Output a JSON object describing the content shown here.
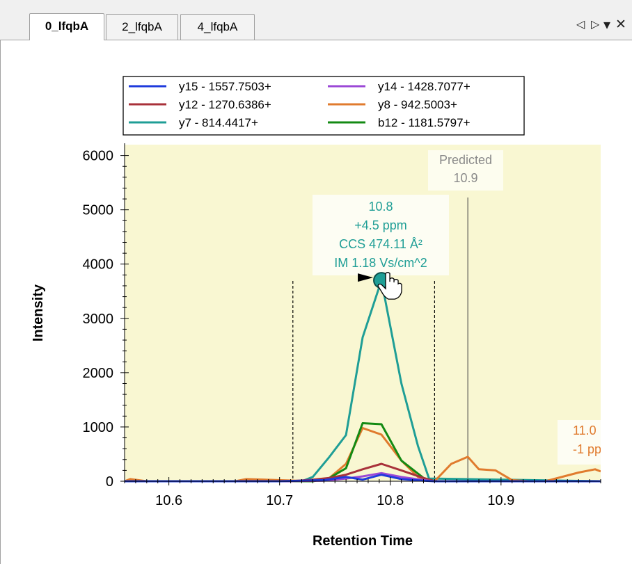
{
  "tabs": [
    {
      "label": "0_lfqbA",
      "active": true
    },
    {
      "label": "2_lfqbA",
      "active": false
    },
    {
      "label": "4_lfqbA",
      "active": false
    }
  ],
  "tab_controls": {
    "prev": "◁",
    "next": "▷",
    "menu": "▾",
    "close": "✕"
  },
  "colors": {
    "plot_background": "#f9f7d2",
    "y15": "#1f3bdc",
    "y14": "#9b48d6",
    "y12": "#a8313a",
    "y8": "#e07b2e",
    "y7": "#1f9e96",
    "b12": "#138a13"
  },
  "chart_data": {
    "type": "line",
    "xlabel": "Retention Time",
    "ylabel": "Intensity",
    "xlim": [
      10.56,
      10.99
    ],
    "ylim": [
      0,
      6200
    ],
    "xticks": [
      10.6,
      10.7,
      10.8,
      10.9
    ],
    "xtick_labels": [
      "10.6",
      "10.7",
      "10.8",
      "10.9"
    ],
    "yticks": [
      0,
      1000,
      2000,
      3000,
      4000,
      5000,
      6000
    ],
    "ytick_labels": [
      "0",
      "1000",
      "2000",
      "3000",
      "4000",
      "5000",
      "6000"
    ],
    "legend_position": "top",
    "series": [
      {
        "name": "y15 - 1557.7503+",
        "color": "#1f3bdc",
        "x": [
          10.56,
          10.7,
          10.74,
          10.76,
          10.775,
          10.792,
          10.81,
          10.83,
          10.84,
          10.99
        ],
        "y": [
          0,
          0,
          20,
          80,
          30,
          120,
          40,
          10,
          0,
          0
        ]
      },
      {
        "name": "y14 - 1428.7077+",
        "color": "#9b48d6",
        "x": [
          10.56,
          10.7,
          10.74,
          10.76,
          10.775,
          10.792,
          10.81,
          10.83,
          10.84,
          10.99
        ],
        "y": [
          0,
          0,
          10,
          50,
          90,
          150,
          80,
          20,
          0,
          0
        ]
      },
      {
        "name": "y12 - 1270.6386+",
        "color": "#a8313a",
        "x": [
          10.56,
          10.71,
          10.73,
          10.745,
          10.76,
          10.775,
          10.792,
          10.81,
          10.83,
          10.84,
          10.99
        ],
        "y": [
          0,
          0,
          30,
          60,
          120,
          220,
          320,
          200,
          60,
          0,
          0
        ]
      },
      {
        "name": "y8 - 942.5003+",
        "color": "#e07b2e",
        "x": [
          10.56,
          10.565,
          10.58,
          10.66,
          10.67,
          10.73,
          10.745,
          10.76,
          10.775,
          10.792,
          10.81,
          10.825,
          10.84,
          10.855,
          10.87,
          10.88,
          10.895,
          10.91,
          10.925,
          10.94,
          10.97,
          10.985,
          10.99
        ],
        "y": [
          0,
          40,
          0,
          0,
          40,
          0,
          60,
          320,
          980,
          860,
          380,
          80,
          0,
          320,
          450,
          220,
          200,
          20,
          0,
          0,
          160,
          220,
          180
        ]
      },
      {
        "name": "y7 - 814.4417+",
        "color": "#1f9e96",
        "x": [
          10.56,
          10.72,
          10.73,
          10.745,
          10.76,
          10.775,
          10.792,
          10.81,
          10.825,
          10.835,
          10.99
        ],
        "y": [
          0,
          0,
          80,
          450,
          850,
          2650,
          3700,
          1800,
          650,
          50,
          0
        ]
      },
      {
        "name": "b12 - 1181.5797+",
        "color": "#138a13",
        "x": [
          10.56,
          10.73,
          10.745,
          10.76,
          10.775,
          10.792,
          10.81,
          10.83,
          10.84,
          10.99
        ],
        "y": [
          0,
          0,
          60,
          240,
          1070,
          1050,
          380,
          60,
          0,
          0
        ]
      }
    ],
    "integration_boundaries": [
      10.712,
      10.84
    ],
    "predicted": {
      "label": "Predicted",
      "value_label": "10.9",
      "x": 10.87
    },
    "peak_annotation": {
      "x": 10.792,
      "y": 3700,
      "lines": [
        "10.8",
        "+4.5 ppm",
        "CCS 474.11 Å²",
        "IM 1.18 Vs/cm^2"
      ]
    },
    "side_annotation": {
      "lines": [
        "11.0",
        "-1 pp"
      ]
    }
  }
}
